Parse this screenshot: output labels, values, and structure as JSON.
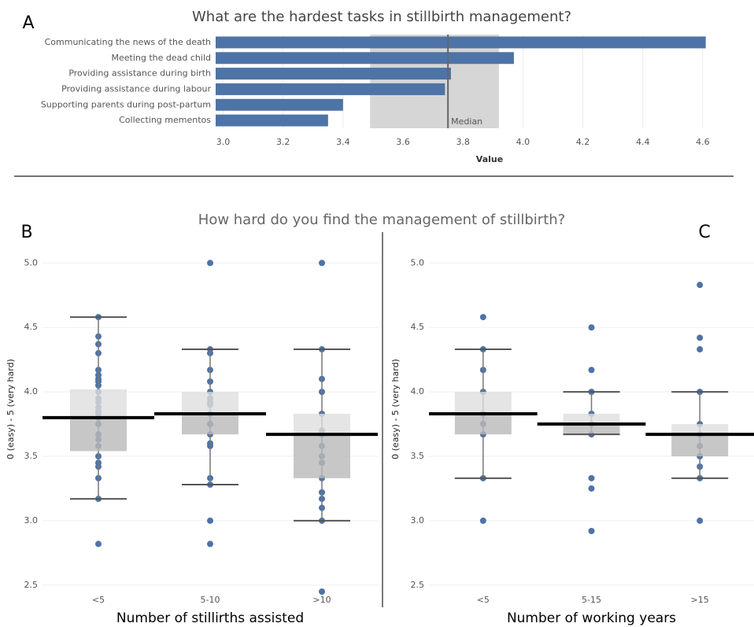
{
  "chart_data": [
    {
      "type": "hbar",
      "panel": "A",
      "title": "What are the hardest tasks in  stillbirth  management?",
      "categories": [
        "Communicating the news of the death",
        "Meeting the dead child",
        "Providing assistance during birth",
        "Providing assistance during labour",
        "Supporting parents during post-partum",
        "Collecting mementos"
      ],
      "values": [
        4.61,
        3.97,
        3.76,
        3.74,
        3.4,
        3.35
      ],
      "color": "#4e73a6",
      "xlim": [
        2.975,
        4.75
      ],
      "xticks": [
        {
          "value": 3,
          "label": "3.0"
        },
        3.2,
        3.4,
        3.6,
        3.8,
        {
          "value": 4,
          "label": "4.0"
        },
        4.2,
        4.4,
        4.6
      ],
      "xlabel": "Value",
      "median": 3.75,
      "median_label": "Median",
      "band": [
        3.49,
        3.92
      ],
      "grid": true
    },
    {
      "type": "box",
      "panel": "B",
      "title": "How hard do you find the management of stillbirth?",
      "ylabel": "0 (easy) - 5 (very hard)",
      "xlabel": "Number of stillirths assisted",
      "categories": [
        "<5",
        "5-10",
        ">10"
      ],
      "color": "#4e73a6",
      "ylim": [
        2.45,
        5.24
      ],
      "yticks": [
        2.5,
        {
          "value": 3,
          "label": "3.0"
        },
        3.5,
        {
          "value": 4,
          "label": "4.0"
        },
        4.5,
        {
          "value": 5,
          "label": "5.0"
        }
      ],
      "grid": true,
      "boxes": [
        {
          "whisker_low": 3.17,
          "q1": 3.54,
          "median": 3.8,
          "q3": 4.02,
          "whisker_high": 4.58,
          "points": [
            2.82,
            3.17,
            3.33,
            3.42,
            3.45,
            3.5,
            3.58,
            3.63,
            3.67,
            3.75,
            3.8,
            3.83,
            3.85,
            3.88,
            3.92,
            3.95,
            4.0,
            4.05,
            4.08,
            4.1,
            4.13,
            4.17,
            4.3,
            4.37,
            4.43,
            4.58
          ]
        },
        {
          "whisker_low": 3.28,
          "q1": 3.67,
          "median": 3.83,
          "q3": 4.0,
          "whisker_high": 4.33,
          "points": [
            2.82,
            3.0,
            3.28,
            3.33,
            3.58,
            3.6,
            3.67,
            3.75,
            3.83,
            3.9,
            3.92,
            3.95,
            4.0,
            4.08,
            4.17,
            4.3,
            4.33,
            5.0
          ]
        },
        {
          "whisker_low": 3.0,
          "q1": 3.33,
          "median": 3.67,
          "q3": 3.83,
          "whisker_high": 4.33,
          "points": [
            2.45,
            3.0,
            3.1,
            3.17,
            3.22,
            3.33,
            3.45,
            3.5,
            3.58,
            3.67,
            3.7,
            3.83,
            4.0,
            4.1,
            4.33,
            5.0
          ]
        }
      ]
    },
    {
      "type": "box",
      "panel": "C",
      "ylabel": "0 (easy) - 5 (very hard)",
      "xlabel": "Number of working years",
      "categories": [
        "<5",
        "5-15",
        ">15"
      ],
      "color": "#4e73a6",
      "ylim": [
        2.45,
        5.24
      ],
      "yticks": [
        2.5,
        {
          "value": 3,
          "label": "3.0"
        },
        3.5,
        {
          "value": 4,
          "label": "4.0"
        },
        4.5,
        {
          "value": 5,
          "label": "5.0"
        }
      ],
      "grid": true,
      "boxes": [
        {
          "whisker_low": 3.33,
          "q1": 3.67,
          "median": 3.83,
          "q3": 4.0,
          "whisker_high": 4.33,
          "points": [
            3.0,
            3.33,
            3.67,
            3.75,
            3.83,
            4.0,
            4.17,
            4.33,
            4.58
          ]
        },
        {
          "whisker_low": 3.67,
          "q1": 3.67,
          "median": 3.75,
          "q3": 3.83,
          "whisker_high": 4.0,
          "points": [
            2.92,
            3.25,
            3.33,
            3.67,
            3.75,
            3.83,
            4.0,
            4.17,
            4.5
          ]
        },
        {
          "whisker_low": 3.33,
          "q1": 3.5,
          "median": 3.67,
          "q3": 3.75,
          "whisker_high": 4.0,
          "points": [
            3.0,
            3.33,
            3.42,
            3.5,
            3.58,
            3.67,
            3.75,
            4.0,
            4.33,
            4.42,
            4.83
          ]
        }
      ]
    }
  ]
}
